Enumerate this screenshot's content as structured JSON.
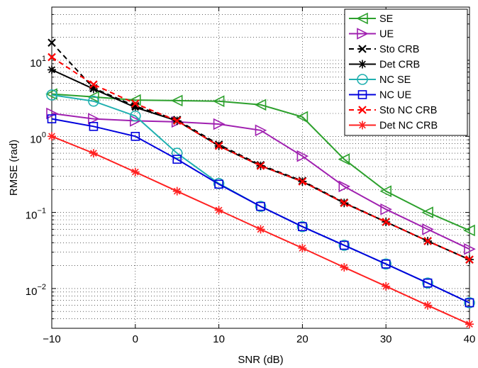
{
  "chart_data": {
    "type": "line",
    "xlabel": "SNR (dB)",
    "ylabel": "RMSE (rad)",
    "xlim": [
      -10,
      40
    ],
    "ylim": [
      0.003,
      50
    ],
    "yscale": "log",
    "grid": true,
    "legend_position": "top-right",
    "x_ticks": [
      -10,
      0,
      10,
      20,
      30,
      40
    ],
    "x_tick_labels": [
      "−10",
      "0",
      "10",
      "20",
      "30",
      "40"
    ],
    "y_ticks": [
      {
        "value": 0.01,
        "base": "10",
        "exp": "−2"
      },
      {
        "value": 0.1,
        "base": "10",
        "exp": "−1"
      },
      {
        "value": 1,
        "base": "10",
        "exp": "0"
      },
      {
        "value": 10,
        "base": "10",
        "exp": "1"
      }
    ],
    "x": [
      -10,
      -5,
      0,
      5,
      10,
      15,
      20,
      25,
      30,
      35,
      40
    ],
    "series": [
      {
        "name": "SE",
        "color": "#2ca02c",
        "dash": "solid",
        "marker": "triangle-left",
        "values": [
          3.6,
          3.3,
          3.0,
          2.95,
          2.9,
          2.6,
          1.8,
          0.5,
          0.19,
          0.1,
          0.058
        ]
      },
      {
        "name": "UE",
        "color": "#a020b0",
        "dash": "solid",
        "marker": "triangle-right",
        "values": [
          2.0,
          1.7,
          1.6,
          1.55,
          1.45,
          1.2,
          0.55,
          0.22,
          0.11,
          0.06,
          0.033
        ]
      },
      {
        "name": "Sto CRB",
        "color": "#000000",
        "dash": "dashed",
        "marker": "x",
        "values": [
          17,
          4.3,
          2.5,
          1.65,
          0.78,
          0.42,
          0.26,
          0.135,
          0.075,
          0.042,
          0.024
        ]
      },
      {
        "name": "Det CRB",
        "color": "#000000",
        "dash": "solid",
        "marker": "star",
        "values": [
          7.5,
          4.2,
          2.4,
          1.6,
          0.75,
          0.41,
          0.255,
          0.133,
          0.075,
          0.042,
          0.024
        ]
      },
      {
        "name": "NC SE",
        "color": "#20b0b0",
        "dash": "solid",
        "marker": "circle",
        "values": [
          3.5,
          2.9,
          1.85,
          0.6,
          0.24,
          0.12,
          0.065,
          0.037,
          0.021,
          0.0118,
          0.0065
        ]
      },
      {
        "name": "NC UE",
        "color": "#0000dd",
        "dash": "solid",
        "marker": "square",
        "values": [
          1.7,
          1.35,
          1.0,
          0.5,
          0.235,
          0.12,
          0.065,
          0.037,
          0.021,
          0.0118,
          0.0065
        ]
      },
      {
        "name": "Sto NC CRB",
        "color": "#ff0000",
        "dash": "dashed",
        "marker": "x",
        "values": [
          11,
          4.8,
          2.7,
          1.6,
          0.75,
          0.41,
          0.255,
          0.133,
          0.075,
          0.042,
          0.024
        ]
      },
      {
        "name": "Det NC CRB",
        "color": "#ff2020",
        "dash": "solid",
        "marker": "star",
        "values": [
          1.0,
          0.6,
          0.34,
          0.19,
          0.107,
          0.06,
          0.034,
          0.019,
          0.0107,
          0.006,
          0.0034
        ]
      }
    ]
  }
}
